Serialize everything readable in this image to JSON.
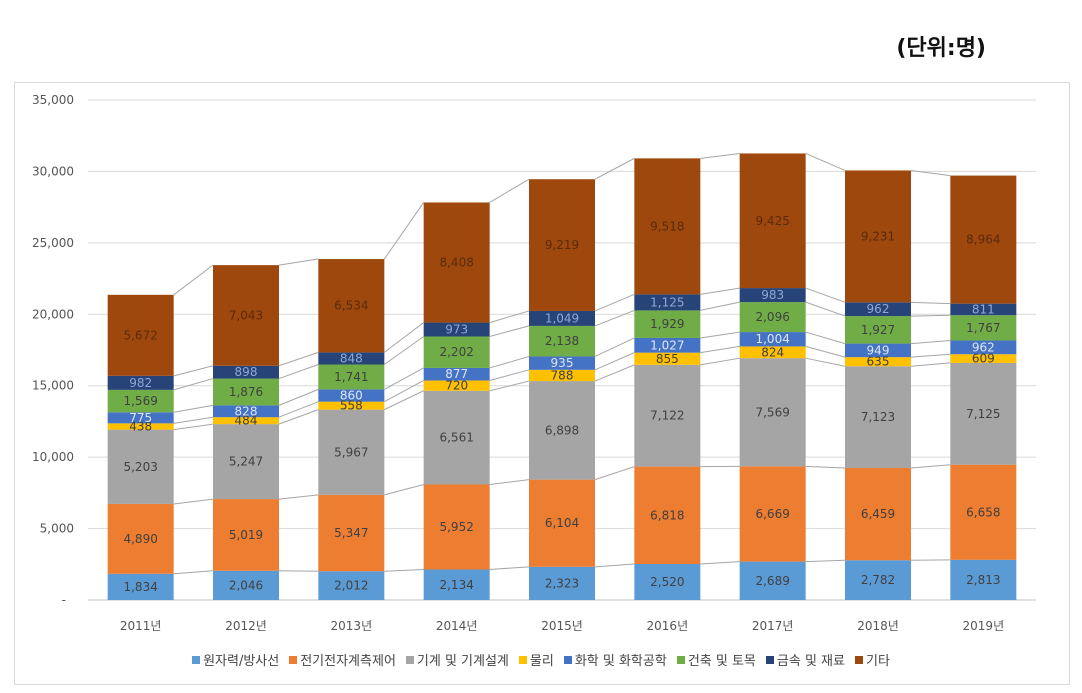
{
  "unit_label": "(단위:명)",
  "chart_data": {
    "type": "bar",
    "stacked": true,
    "categories": [
      "2011년",
      "2012년",
      "2013년",
      "2014년",
      "2015년",
      "2016년",
      "2017년",
      "2018년",
      "2019년"
    ],
    "ylim": [
      0,
      35000
    ],
    "yticks": [
      "-",
      "5,000",
      "10,000",
      "15,000",
      "20,000",
      "25,000",
      "30,000",
      "35,000"
    ],
    "grid": true,
    "legend_position": "bottom",
    "series": [
      {
        "name": "원자력/방사선",
        "color": "#5b9bd5",
        "values": [
          1834,
          2046,
          2012,
          2134,
          2323,
          2520,
          2689,
          2782,
          2813
        ],
        "labels": [
          "1,834",
          "2,046",
          "2,012",
          "2,134",
          "2,323",
          "2,520",
          "2,689",
          "2,782",
          "2,813"
        ]
      },
      {
        "name": "전기전자계측제어",
        "color": "#ed7d31",
        "values": [
          4890,
          5019,
          5347,
          5952,
          6104,
          6818,
          6669,
          6459,
          6658
        ],
        "labels": [
          "4,890",
          "5,019",
          "5,347",
          "5,952",
          "6,104",
          "6,818",
          "6,669",
          "6,459",
          "6,658"
        ]
      },
      {
        "name": "기계 및 기계설계",
        "color": "#a5a5a5",
        "values": [
          5203,
          5247,
          5967,
          6561,
          6898,
          7122,
          7569,
          7123,
          7125
        ],
        "labels": [
          "5,203",
          "5,247",
          "5,967",
          "6,561",
          "6,898",
          "7,122",
          "7,569",
          "7,123",
          "7,125"
        ]
      },
      {
        "name": "물리",
        "color": "#ffc000",
        "values": [
          438,
          484,
          558,
          720,
          788,
          855,
          824,
          635,
          609
        ],
        "labels": [
          "438",
          "484",
          "558",
          "720",
          "788",
          "855",
          "824",
          "635",
          "609"
        ]
      },
      {
        "name": "화학 및 화학공학",
        "color": "#4472c4",
        "values": [
          775,
          828,
          860,
          877,
          935,
          1027,
          1004,
          949,
          962
        ],
        "labels": [
          "775",
          "828",
          "860",
          "877",
          "935",
          "1,027",
          "1,004",
          "949",
          "962"
        ]
      },
      {
        "name": "건축 및 토목",
        "color": "#70ad47",
        "values": [
          1569,
          1876,
          1741,
          2202,
          2138,
          1929,
          2096,
          1927,
          1767
        ],
        "labels": [
          "1,569",
          "1,876",
          "1,741",
          "2,202",
          "2,138",
          "1,929",
          "2,096",
          "1,927",
          "1,767"
        ]
      },
      {
        "name": "금속 및 재료",
        "color": "#264478",
        "values": [
          982,
          898,
          848,
          973,
          1049,
          1125,
          983,
          962,
          811
        ],
        "labels": [
          "982",
          "898",
          "848",
          "973",
          "1,049",
          "1,125",
          "983",
          "962",
          "811"
        ]
      },
      {
        "name": "기타",
        "color": "#9e480e",
        "values": [
          5672,
          7043,
          6534,
          8408,
          9219,
          9518,
          9425,
          9231,
          8964
        ],
        "labels": [
          "5,672",
          "7,043",
          "6,534",
          "8,408",
          "9,219",
          "9,518",
          "9,425",
          "9,231",
          "8,964"
        ]
      }
    ]
  }
}
